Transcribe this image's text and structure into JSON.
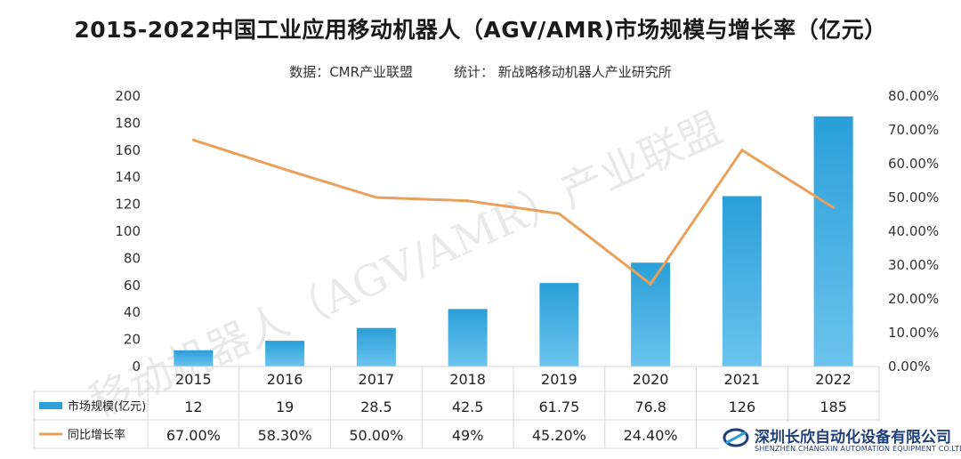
{
  "title": "2015-2022中国工业应用移动机器人（AGV/AMR)市场规模与增长率（亿元）",
  "subtitle": {
    "source": "数据：CMR产业联盟",
    "stats": "统计：  新战略移动机器人产业研究所"
  },
  "watermark": "移动机器人（AGV/AMR）产业联盟",
  "company": {
    "name": "深圳长欣自动化设备有限公司",
    "name_en": "SHENZHEN CHANGXIN AUTOMATION EQUIPMENT CO.LTD"
  },
  "colors": {
    "bar": "#2a9fd8",
    "line": "#e8a05a",
    "company": "#1f3f7a"
  },
  "chart_data": {
    "type": "bar",
    "categories": [
      "2015",
      "2016",
      "2017",
      "2018",
      "2019",
      "2020",
      "2021",
      "2022"
    ],
    "series": [
      {
        "name": "市场规模(亿元)",
        "type": "bar",
        "axis": "left",
        "values": [
          12,
          19,
          28.5,
          42.5,
          61.75,
          76.8,
          126,
          185
        ],
        "labels": [
          "12",
          "19",
          "28.5",
          "42.5",
          "61.75",
          "76.8",
          "126",
          "185"
        ]
      },
      {
        "name": "同比增长率",
        "type": "line",
        "axis": "right",
        "values": [
          67.0,
          58.3,
          50.0,
          49,
          45.2,
          24.4,
          64,
          47
        ],
        "labels": [
          "67.00%",
          "58.30%",
          "50.00%",
          "49%",
          "45.20%",
          "24.40%",
          "",
          ""
        ]
      }
    ],
    "y_left": {
      "range": [
        0,
        200
      ],
      "ticks": [
        "0",
        "20",
        "40",
        "60",
        "80",
        "100",
        "120",
        "140",
        "160",
        "180",
        "200"
      ]
    },
    "y_right": {
      "range": [
        0,
        80
      ],
      "ticks": [
        "0.00%",
        "10.00%",
        "20.00%",
        "30.00%",
        "40.00%",
        "50.00%",
        "60.00%",
        "70.00%",
        "80.00%"
      ]
    },
    "grid": false,
    "legend": "data-table"
  }
}
